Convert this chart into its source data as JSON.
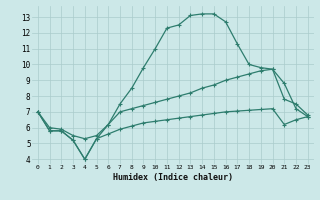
{
  "xlabel": "Humidex (Indice chaleur)",
  "ylabel": "",
  "background_color": "#cce8e8",
  "grid_color": "#aacccc",
  "line_color": "#2e7d6e",
  "xlim": [
    -0.5,
    23.5
  ],
  "ylim": [
    3.7,
    13.7
  ],
  "xticks": [
    0,
    1,
    2,
    3,
    4,
    5,
    6,
    7,
    8,
    9,
    10,
    11,
    12,
    13,
    14,
    15,
    16,
    17,
    18,
    19,
    20,
    21,
    22,
    23
  ],
  "yticks": [
    4,
    5,
    6,
    7,
    8,
    9,
    10,
    11,
    12,
    13
  ],
  "line1_x": [
    0,
    1,
    2,
    3,
    4,
    5,
    6,
    7,
    8,
    9,
    10,
    11,
    12,
    13,
    14,
    15,
    16,
    17,
    18,
    19,
    20,
    21,
    22,
    23
  ],
  "line1_y": [
    7.0,
    5.8,
    5.8,
    5.2,
    4.0,
    5.3,
    6.2,
    7.5,
    8.5,
    9.8,
    11.0,
    12.3,
    12.5,
    13.1,
    13.2,
    13.2,
    12.7,
    11.3,
    10.0,
    9.8,
    9.7,
    7.8,
    7.5,
    6.8
  ],
  "line2_x": [
    0,
    1,
    2,
    3,
    4,
    5,
    6,
    7,
    8,
    9,
    10,
    11,
    12,
    13,
    14,
    15,
    16,
    17,
    18,
    19,
    20,
    21,
    22,
    23
  ],
  "line2_y": [
    7.0,
    6.0,
    5.9,
    5.5,
    5.3,
    5.5,
    6.2,
    7.0,
    7.2,
    7.4,
    7.6,
    7.8,
    8.0,
    8.2,
    8.5,
    8.7,
    9.0,
    9.2,
    9.4,
    9.6,
    9.7,
    8.8,
    7.2,
    6.7
  ],
  "line3_x": [
    0,
    1,
    2,
    3,
    4,
    5,
    6,
    7,
    8,
    9,
    10,
    11,
    12,
    13,
    14,
    15,
    16,
    17,
    18,
    19,
    20,
    21,
    22,
    23
  ],
  "line3_y": [
    7.0,
    5.8,
    5.8,
    5.2,
    4.0,
    5.3,
    5.6,
    5.9,
    6.1,
    6.3,
    6.4,
    6.5,
    6.6,
    6.7,
    6.8,
    6.9,
    7.0,
    7.05,
    7.1,
    7.15,
    7.2,
    6.2,
    6.5,
    6.7
  ]
}
